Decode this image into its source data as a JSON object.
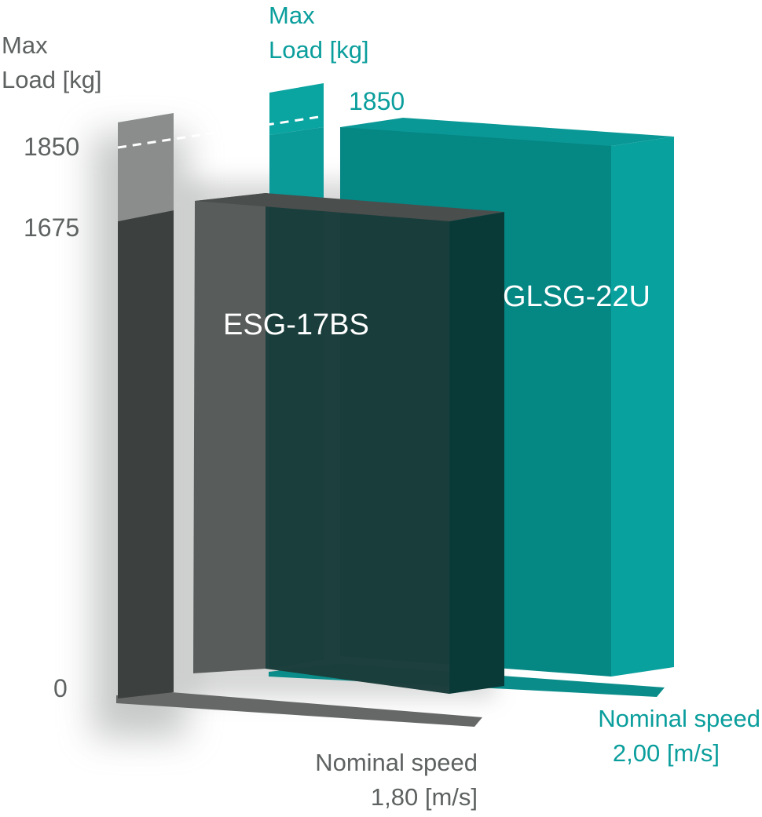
{
  "chart_data": {
    "type": "bar",
    "style": "3d-overlapping-blocks",
    "series": [
      {
        "name": "ESG-17BS",
        "max_load_kg": 1675,
        "nominal_speed_ms": 1.8,
        "color": "#3b3f3e",
        "axis_label_load": [
          "Max",
          "Load [kg]"
        ],
        "axis_label_speed": [
          "Nominal speed",
          "1,80 [m/s]"
        ]
      },
      {
        "name": "GLSG-22U",
        "max_load_kg": 1850,
        "nominal_speed_ms": 2.0,
        "color": "#089592",
        "axis_label_load": [
          "Max",
          "Load [kg]"
        ],
        "axis_label_speed": [
          "Nominal speed",
          "2,00 [m/s]"
        ]
      }
    ],
    "y_ticks_left": [
      "1850",
      "1675",
      "0"
    ],
    "y_tick_teal": "1850",
    "ylim": [
      0,
      1850
    ],
    "reference_line": "dashed line at 1850"
  },
  "colors": {
    "gray_text": "#5f6262",
    "teal_text": "#0a9e9c",
    "dark_bar": "#3b3f3e",
    "teal_bar": "#089592"
  }
}
